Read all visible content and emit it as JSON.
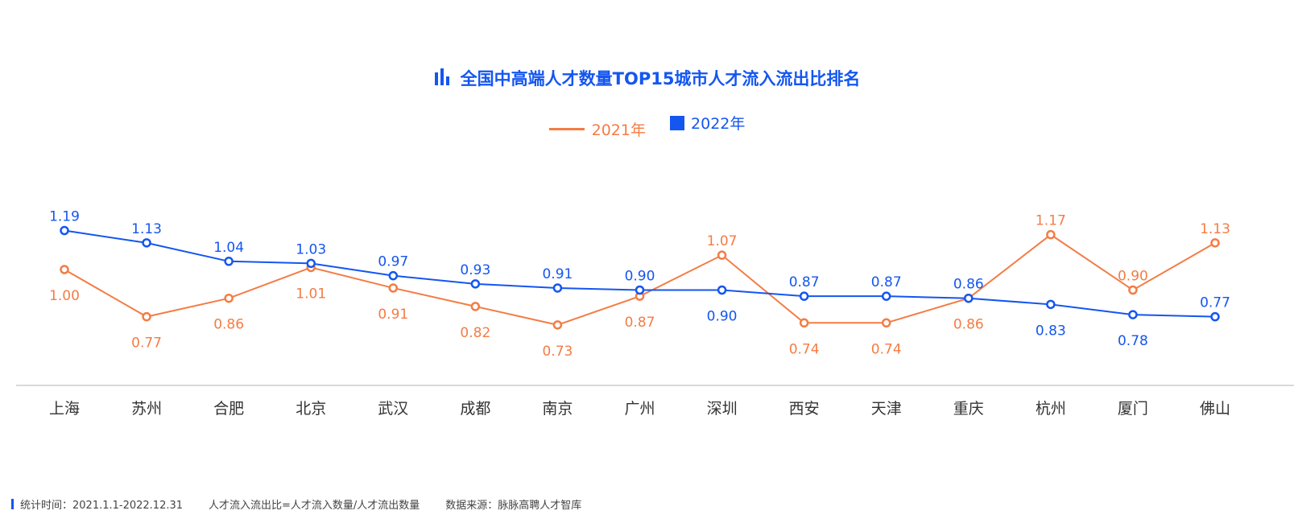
{
  "chart_data": {
    "type": "line",
    "title": "全国中高端人才数量TOP15城市人才流入流出比排名",
    "categories": [
      "上海",
      "苏州",
      "合肥",
      "北京",
      "武汉",
      "成都",
      "南京",
      "广州",
      "深圳",
      "西安",
      "天津",
      "重庆",
      "杭州",
      "厦门",
      "佛山"
    ],
    "series": [
      {
        "name": "2021年",
        "color": "#f47c44",
        "values": [
          1.0,
          0.77,
          0.86,
          1.01,
          0.91,
          0.82,
          0.73,
          0.87,
          1.07,
          0.74,
          0.74,
          0.86,
          1.17,
          0.9,
          1.13
        ]
      },
      {
        "name": "2022年",
        "color": "#1456f0",
        "values": [
          1.19,
          1.13,
          1.04,
          1.03,
          0.97,
          0.93,
          0.91,
          0.9,
          0.9,
          0.87,
          0.87,
          0.86,
          0.83,
          0.78,
          0.77
        ]
      }
    ],
    "value_labels_2021": [
      "1.00",
      "0.77",
      "0.86",
      "1.01",
      "0.91",
      "0.82",
      "0.73",
      "0.87",
      "1.07",
      "0.74",
      "0.74",
      "0.86",
      "1.17",
      "0.90",
      "1.13"
    ],
    "value_labels_2022": [
      "1.19",
      "1.13",
      "1.04",
      "1.03",
      "0.97",
      "0.93",
      "0.91",
      "0.90",
      "0.90",
      "0.87",
      "0.87",
      "0.86",
      "0.83",
      "0.78",
      "0.77"
    ],
    "label_pos_2021": [
      "below",
      "below",
      "below",
      "below",
      "below",
      "below",
      "below",
      "below",
      "above",
      "below",
      "below",
      "below",
      "above",
      "above",
      "above"
    ],
    "label_pos_2022": [
      "above",
      "above",
      "above",
      "above",
      "above",
      "above",
      "above",
      "above",
      "below",
      "above",
      "above",
      "above",
      "below",
      "below",
      "above"
    ],
    "legend_placement": "top-center",
    "grid": false
  },
  "legend": {
    "label_2021": "2021年",
    "label_2022": "2022年"
  },
  "footer": {
    "period": "统计时间：2021.1.1-2022.12.31",
    "formula": "人才流入流出比=人才流入数量/人才流出数量",
    "source": "数据来源：脉脉高聘人才智库"
  }
}
